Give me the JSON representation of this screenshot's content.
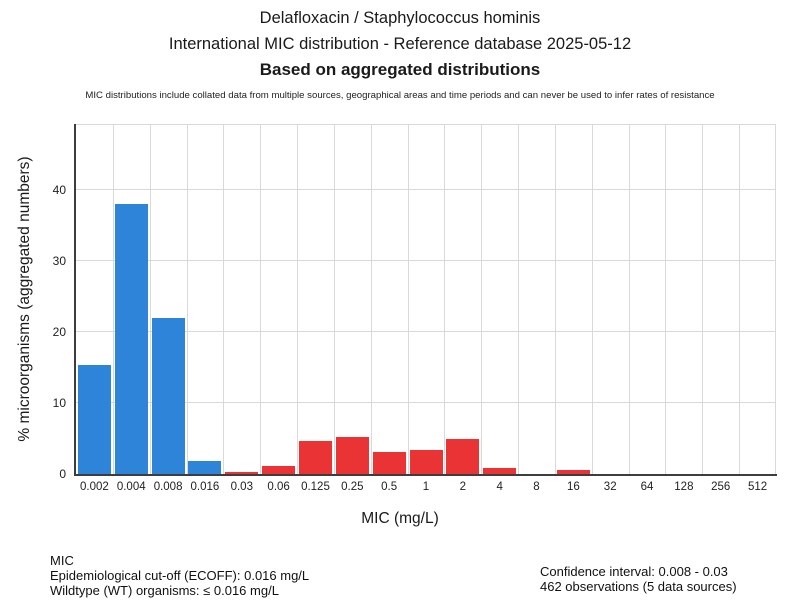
{
  "header": {
    "title_line1": "Delafloxacin / Staphylococcus hominis",
    "title_line2": "International MIC distribution - Reference database 2025-05-12",
    "title_line3": "Based on aggregated distributions",
    "disclaimer": "MIC distributions include collated data from multiple sources, geographical areas and time periods and can never be used to infer rates of resistance"
  },
  "chart_data": {
    "type": "bar",
    "title": "Delafloxacin / Staphylococcus hominis - International MIC distribution",
    "xlabel": "MIC (mg/L)",
    "ylabel": "% microorganisms (aggregated numbers)",
    "categories": [
      "0.002",
      "0.004",
      "0.008",
      "0.016",
      "0.03",
      "0.06",
      "0.125",
      "0.25",
      "0.5",
      "1",
      "2",
      "4",
      "8",
      "16",
      "32",
      "64",
      "128",
      "256",
      "512"
    ],
    "values": [
      15.4,
      38,
      22,
      1.9,
      0.3,
      1.1,
      4.6,
      5.2,
      3.1,
      3.4,
      4.9,
      0.8,
      0,
      0.6,
      0,
      0,
      0,
      0,
      0
    ],
    "bar_groups": [
      "wildtype",
      "wildtype",
      "wildtype",
      "wildtype",
      "non_wildtype",
      "non_wildtype",
      "non_wildtype",
      "non_wildtype",
      "non_wildtype",
      "non_wildtype",
      "non_wildtype",
      "non_wildtype",
      "non_wildtype",
      "non_wildtype",
      "non_wildtype",
      "non_wildtype",
      "non_wildtype",
      "non_wildtype",
      "non_wildtype"
    ],
    "colors": {
      "wildtype": "#2E84D8",
      "non_wildtype": "#EA3335"
    },
    "grid_color": "#d9d9d9",
    "axis_color": "#3d3d3d",
    "ylim": [
      0,
      49.3
    ],
    "yticks": [
      0,
      10,
      20,
      30,
      40
    ],
    "grid": true,
    "legend": "none"
  },
  "footer": {
    "left": [
      "MIC",
      "Epidemiological cut-off (ECOFF): 0.016 mg/L",
      "Wildtype (WT) organisms: ≤ 0.016 mg/L"
    ],
    "right": [
      "Confidence interval: 0.008 - 0.03",
      "462 observations (5 data sources)"
    ]
  }
}
